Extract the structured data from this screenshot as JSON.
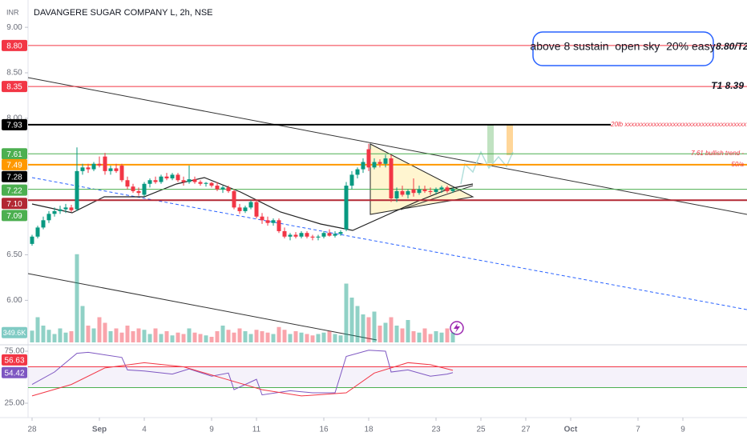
{
  "header": {
    "currency": "INR",
    "title": "DAVANGERE SUGAR COMPANY L, 2h, NSE"
  },
  "chart_data": {
    "type": "candlestick",
    "up_color": "#089981",
    "down_color": "#f23645",
    "ylim": [
      5.52,
      9.3
    ],
    "yticks": [
      {
        "value": 9,
        "label": "9.00"
      },
      {
        "value": 8.5,
        "label": "8.50"
      },
      {
        "value": 8,
        "label": "8.00"
      },
      {
        "value": 6.5,
        "label": "6.50"
      },
      {
        "value": 6,
        "label": "6.00"
      }
    ],
    "xlim": [
      -0.5,
      127.5
    ],
    "xticks": [
      {
        "value": 0,
        "label": "28"
      },
      {
        "value": 12,
        "label": "Sep"
      },
      {
        "value": 20,
        "label": "4"
      },
      {
        "value": 32,
        "label": "9"
      },
      {
        "value": 40,
        "label": "11"
      },
      {
        "value": 52,
        "label": "16"
      },
      {
        "value": 60,
        "label": "18"
      },
      {
        "value": 72,
        "label": "23"
      },
      {
        "value": 80,
        "label": "25"
      },
      {
        "value": 88,
        "label": "27"
      },
      {
        "value": 96,
        "label": "Oct"
      },
      {
        "value": 108,
        "label": "7"
      },
      {
        "value": 116,
        "label": "9"
      }
    ],
    "candles": [
      [
        6.62,
        6.72,
        6.6,
        6.7
      ],
      [
        6.7,
        6.82,
        6.68,
        6.8
      ],
      [
        6.8,
        6.92,
        6.78,
        6.88
      ],
      [
        6.88,
        6.98,
        6.85,
        6.95
      ],
      [
        6.95,
        7.02,
        6.92,
        6.98
      ],
      [
        6.98,
        7.04,
        6.95,
        7.0
      ],
      [
        7.0,
        7.06,
        6.96,
        7.02
      ],
      [
        7.02,
        7.05,
        6.97,
        6.99
      ],
      [
        7.0,
        7.68,
        6.98,
        7.42
      ],
      [
        7.42,
        7.5,
        7.38,
        7.46
      ],
      [
        7.46,
        7.5,
        7.4,
        7.44
      ],
      [
        7.44,
        7.52,
        7.42,
        7.5
      ],
      [
        7.5,
        7.58,
        7.46,
        7.48
      ],
      [
        7.58,
        7.62,
        7.38,
        7.42
      ],
      [
        7.42,
        7.48,
        7.38,
        7.45
      ],
      [
        7.45,
        7.5,
        7.4,
        7.42
      ],
      [
        7.48,
        7.5,
        7.3,
        7.32
      ],
      [
        7.32,
        7.36,
        7.22,
        7.25
      ],
      [
        7.25,
        7.28,
        7.18,
        7.2
      ],
      [
        7.2,
        7.24,
        7.15,
        7.18
      ],
      [
        7.16,
        7.3,
        7.14,
        7.28
      ],
      [
        7.28,
        7.34,
        7.24,
        7.32
      ],
      [
        7.32,
        7.36,
        7.28,
        7.3
      ],
      [
        7.3,
        7.38,
        7.28,
        7.36
      ],
      [
        7.36,
        7.4,
        7.32,
        7.34
      ],
      [
        7.34,
        7.4,
        7.32,
        7.38
      ],
      [
        7.38,
        7.4,
        7.3,
        7.32
      ],
      [
        7.32,
        7.36,
        7.26,
        7.3
      ],
      [
        7.3,
        7.48,
        7.28,
        7.33
      ],
      [
        7.33,
        7.36,
        7.28,
        7.3
      ],
      [
        7.3,
        7.32,
        7.26,
        7.28
      ],
      [
        7.28,
        7.3,
        7.25,
        7.29
      ],
      [
        7.29,
        7.3,
        7.24,
        7.26
      ],
      [
        7.26,
        7.3,
        7.2,
        7.22
      ],
      [
        7.22,
        7.26,
        7.18,
        7.24
      ],
      [
        7.24,
        7.26,
        7.18,
        7.2
      ],
      [
        7.2,
        7.22,
        7.0,
        7.02
      ],
      [
        7.02,
        7.06,
        6.95,
        6.98
      ],
      [
        6.98,
        7.04,
        6.96,
        7.02
      ],
      [
        7.02,
        7.1,
        7.0,
        7.08
      ],
      [
        7.08,
        7.1,
        6.9,
        6.92
      ],
      [
        6.92,
        6.96,
        6.84,
        6.88
      ],
      [
        6.88,
        6.92,
        6.82,
        6.85
      ],
      [
        6.85,
        6.9,
        6.82,
        6.88
      ],
      [
        6.88,
        6.9,
        6.74,
        6.76
      ],
      [
        6.76,
        6.8,
        6.68,
        6.7
      ],
      [
        6.7,
        6.74,
        6.66,
        6.72
      ],
      [
        6.72,
        6.75,
        6.68,
        6.7
      ],
      [
        6.7,
        6.76,
        6.68,
        6.74
      ],
      [
        6.74,
        6.76,
        6.68,
        6.7
      ],
      [
        6.7,
        6.72,
        6.66,
        6.69
      ],
      [
        6.69,
        6.72,
        6.66,
        6.7
      ],
      [
        6.7,
        6.76,
        6.68,
        6.74
      ],
      [
        6.74,
        6.78,
        6.7,
        6.71
      ],
      [
        6.71,
        6.76,
        6.69,
        6.73
      ],
      [
        6.73,
        6.77,
        6.71,
        6.75
      ],
      [
        6.78,
        7.3,
        6.76,
        7.26
      ],
      [
        7.26,
        7.42,
        7.22,
        7.38
      ],
      [
        7.38,
        7.46,
        7.34,
        7.44
      ],
      [
        7.44,
        7.56,
        7.4,
        7.52
      ],
      [
        7.66,
        7.72,
        7.42,
        7.46
      ],
      [
        7.46,
        7.56,
        7.44,
        7.52
      ],
      [
        7.52,
        7.55,
        7.46,
        7.5
      ],
      [
        7.5,
        7.6,
        7.46,
        7.56
      ],
      [
        7.56,
        7.6,
        7.08,
        7.12
      ],
      [
        7.12,
        7.24,
        7.08,
        7.2
      ],
      [
        7.2,
        7.26,
        7.14,
        7.16
      ],
      [
        7.16,
        7.22,
        7.12,
        7.2
      ],
      [
        7.22,
        7.34,
        7.14,
        7.18
      ],
      [
        7.18,
        7.26,
        7.16,
        7.22
      ],
      [
        7.22,
        7.26,
        7.18,
        7.2
      ],
      [
        7.2,
        7.24,
        7.16,
        7.19
      ],
      [
        7.19,
        7.24,
        7.16,
        7.22
      ],
      [
        7.22,
        7.26,
        7.18,
        7.24
      ],
      [
        7.24,
        7.26,
        7.18,
        7.2
      ],
      [
        7.2,
        7.24,
        7.18,
        7.22
      ]
    ],
    "volume": {
      "ylim": [
        0,
        3200
      ],
      "yticks": [
        {
          "value": 349.6,
          "label": "349.6K"
        }
      ],
      "values": [
        420,
        900,
        600,
        450,
        300,
        500,
        350,
        400,
        3150,
        1300,
        600,
        500,
        900,
        700,
        400,
        500,
        350,
        600,
        400,
        500,
        450,
        300,
        500,
        300,
        400,
        250,
        350,
        300,
        500,
        350,
        300,
        250,
        200,
        400,
        600,
        450,
        350,
        500,
        400,
        300,
        450,
        400,
        350,
        300,
        550,
        450,
        300,
        400,
        350,
        300,
        250,
        300,
        350,
        400,
        300,
        250,
        2100,
        1600,
        1300,
        1000,
        900,
        1100,
        600,
        700,
        900,
        600,
        500,
        800,
        400,
        350,
        500,
        300,
        400,
        350,
        500,
        349.6
      ]
    },
    "levels": [
      {
        "value": 8.8,
        "label": "8.80",
        "color": "#f23645",
        "line": "thin"
      },
      {
        "value": 8.35,
        "label": "8.35",
        "color": "#f23645",
        "line": "thin"
      },
      {
        "value": 7.93,
        "label": "7.93",
        "color": "#000000",
        "line": "bold"
      },
      {
        "value": 7.61,
        "label": "7.61",
        "color": "#4caf50",
        "line": "thin"
      },
      {
        "value": 7.49,
        "label": "7.49",
        "color": "#ff9800",
        "line": "bold"
      },
      {
        "value": 7.28,
        "label": "7.28",
        "color": "#000000",
        "line": "none"
      },
      {
        "value": 7.22,
        "label": "7.22",
        "color": "#4caf50",
        "line": "thin"
      },
      {
        "value": 7.1,
        "label": "7.10",
        "color": "#b22833",
        "line": "bold"
      },
      {
        "value": 7.09,
        "label": "7.09",
        "color": "#4caf50",
        "line": "none"
      }
    ],
    "annotations": {
      "box": "above 8 sustain  open sky  20% easy",
      "t2": "8.80/T2",
      "t1": "T1 8.39",
      "lb": "20lb xxxxxxxxxxxxxxxxxxxxxxxxxxxxxxxxxxxxxx",
      "bullish": "7.61 bullish trend -",
      "fifty": "50/a"
    },
    "rsi": {
      "ylim": [
        12.7,
        80.4
      ],
      "yticks": [
        {
          "value": 75,
          "label": "75.00"
        },
        {
          "value": 25,
          "label": "25.00"
        }
      ],
      "bands": [
        60,
        40
      ],
      "line": {
        "color": "#7e57c2",
        "x": [
          0,
          4,
          8,
          10,
          16,
          17,
          20,
          25,
          28,
          32,
          35,
          36,
          40,
          41,
          46,
          50,
          54,
          56,
          60,
          63,
          64,
          67,
          71,
          74,
          75
        ],
        "values": [
          43,
          55,
          73,
          74,
          69,
          57,
          56,
          53,
          58,
          51,
          54,
          38,
          48,
          33,
          37,
          35,
          35,
          70,
          76,
          75,
          55,
          57,
          51,
          53,
          54.42
        ]
      },
      "ma": {
        "color": "#f23645",
        "x": [
          0,
          7,
          13,
          20,
          27,
          34,
          41,
          48,
          56,
          61,
          67,
          71,
          75
        ],
        "values": [
          32,
          43,
          59,
          64,
          60,
          49,
          38,
          32,
          35,
          54,
          64,
          62,
          56.63
        ]
      }
    }
  }
}
